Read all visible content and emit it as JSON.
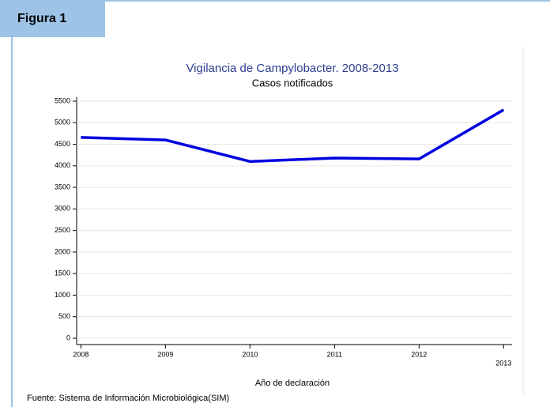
{
  "header": {
    "title": "Figura 1"
  },
  "chart_data": {
    "type": "line",
    "title": "Vigilancia de Campylobacter. 2008-2013",
    "subtitle": "Casos notificados",
    "x_label": "Año de declaración",
    "x": [
      2008,
      2009,
      2010,
      2011,
      2012,
      2013
    ],
    "series": [
      {
        "name": "Casos",
        "color": "#0000e0",
        "values": [
          4660,
          4600,
          4100,
          4180,
          4160,
          5300
        ]
      }
    ],
    "xlim": [
      2007.95,
      2013.1
    ],
    "xticks": [
      2008,
      2009,
      2010,
      2011,
      2012,
      2013
    ],
    "ylim": [
      0,
      5500
    ],
    "yticks": [
      0,
      500,
      1000,
      1500,
      2000,
      2500,
      3000,
      3500,
      4000,
      4500,
      5000,
      5500
    ],
    "grid": true
  },
  "source": "Fuente: Sistema de Información Microbiológica(SIM)"
}
